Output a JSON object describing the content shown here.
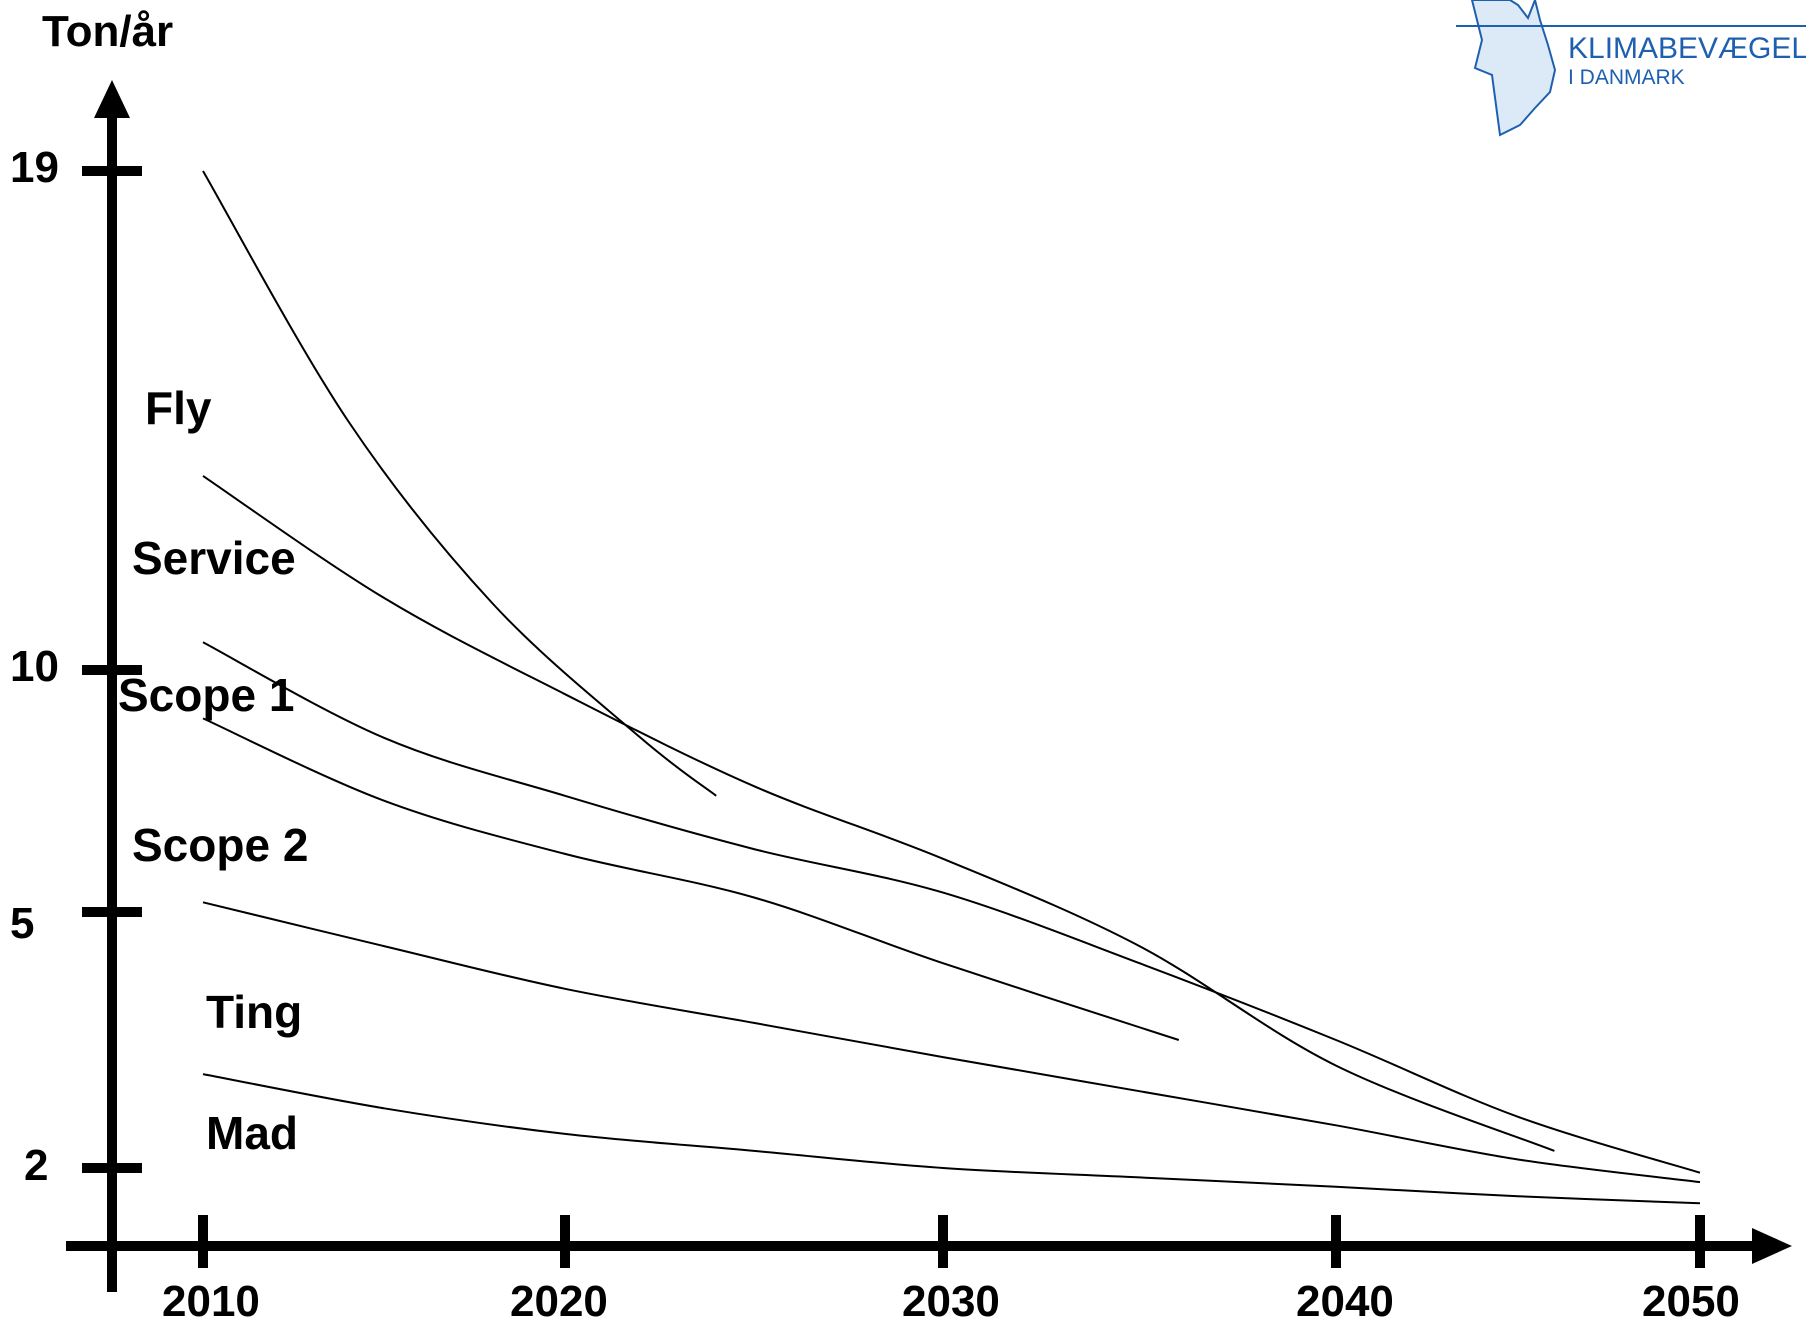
{
  "chart_data": {
    "type": "line",
    "ylabel": "Ton/år",
    "xlabel": "",
    "x_ticks": [
      "2010",
      "2020",
      "2030",
      "2040",
      "2050"
    ],
    "y_ticks": [
      "19",
      "10",
      "5",
      "2"
    ],
    "series": [
      {
        "name": "Fly",
        "x": [
          2010,
          2014,
          2018,
          2022,
          2024
        ],
        "y": [
          19,
          14.5,
          11.2,
          8.6,
          7.4
        ]
      },
      {
        "name": "Service",
        "x": [
          2010,
          2015,
          2020,
          2025,
          2030,
          2035,
          2040,
          2046
        ],
        "y": [
          13.5,
          11.3,
          9.5,
          7.6,
          6.1,
          4.6,
          3.2,
          2.2
        ]
      },
      {
        "name": "Scope 1",
        "x": [
          2010,
          2015,
          2020,
          2025,
          2030,
          2035,
          2040,
          2045,
          2050
        ],
        "y": [
          10.5,
          8.6,
          7.4,
          6.3,
          5.4,
          4.4,
          3.5,
          2.6,
          1.9
        ]
      },
      {
        "name": "Scope 2",
        "x": [
          2010,
          2015,
          2020,
          2025,
          2030,
          2036
        ],
        "y": [
          9,
          7.3,
          6.2,
          5.3,
          4.4,
          3.5
        ]
      },
      {
        "name": "Ting",
        "x": [
          2010,
          2015,
          2020,
          2025,
          2030,
          2035,
          2040,
          2045,
          2050
        ],
        "y": [
          5.2,
          4.6,
          4.1,
          3.7,
          3.3,
          2.9,
          2.5,
          2.1,
          1.7
        ]
      },
      {
        "name": "Mad",
        "x": [
          2010,
          2015,
          2020,
          2025,
          2030,
          2035,
          2040,
          2045,
          2050
        ],
        "y": [
          3.1,
          2.7,
          2.4,
          2.2,
          2.0,
          1.8,
          1.6,
          1.4,
          1.25
        ]
      }
    ],
    "series_labels": [
      "Fly",
      "Service",
      "Scope 1",
      "Scope 2",
      "Ting",
      "Mad"
    ],
    "grid": false,
    "legend": "inline"
  },
  "logo": {
    "line1": "KLIMABEVÆGELS",
    "line2": "I DANMARK"
  }
}
